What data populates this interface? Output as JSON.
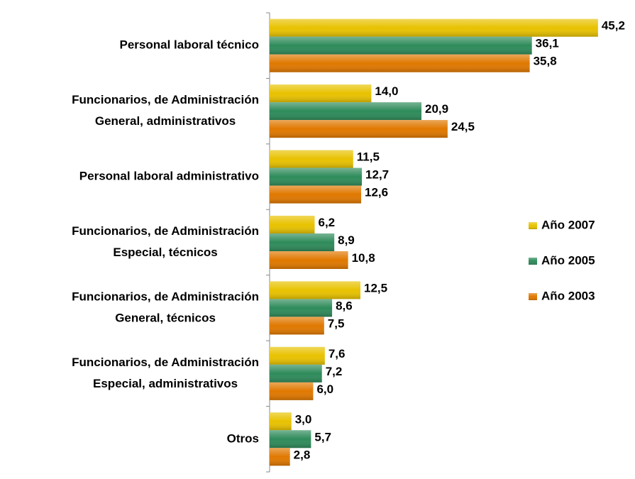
{
  "chart_data": {
    "type": "bar",
    "orientation": "horizontal",
    "categories": [
      [
        "Personal laboral técnico"
      ],
      [
        "Funcionarios, de Administración",
        "General, administrativos"
      ],
      [
        "Personal laboral administrativo"
      ],
      [
        "Funcionarios, de Administración",
        "Especial, técnicos"
      ],
      [
        "Funcionarios, de Administración",
        "General, técnicos"
      ],
      [
        "Funcionarios, de Administración",
        "Especial, administrativos"
      ],
      [
        "Otros"
      ]
    ],
    "series": [
      {
        "name": "Año 2007",
        "color": "#e8c200",
        "values": [
          45.2,
          14.0,
          11.5,
          6.2,
          12.5,
          7.6,
          3.0
        ],
        "value_labels": [
          "45,2",
          "14,0",
          "11,5",
          "6,2",
          "12,5",
          "7,6",
          "3,0"
        ]
      },
      {
        "name": "Año 2005",
        "color": "#2e8b5a",
        "values": [
          36.1,
          20.9,
          12.7,
          8.9,
          8.6,
          7.2,
          5.7
        ],
        "value_labels": [
          "36,1",
          "20,9",
          "12,7",
          "8,9",
          "8,6",
          "7,2",
          "5,7"
        ]
      },
      {
        "name": "Año 2003",
        "color": "#e07800",
        "values": [
          35.8,
          24.5,
          12.6,
          10.8,
          7.5,
          6.0,
          2.8
        ],
        "value_labels": [
          "35,8",
          "24,5",
          "12,6",
          "10,8",
          "7,5",
          "6,0",
          "2,8"
        ]
      }
    ],
    "legend": "right"
  }
}
